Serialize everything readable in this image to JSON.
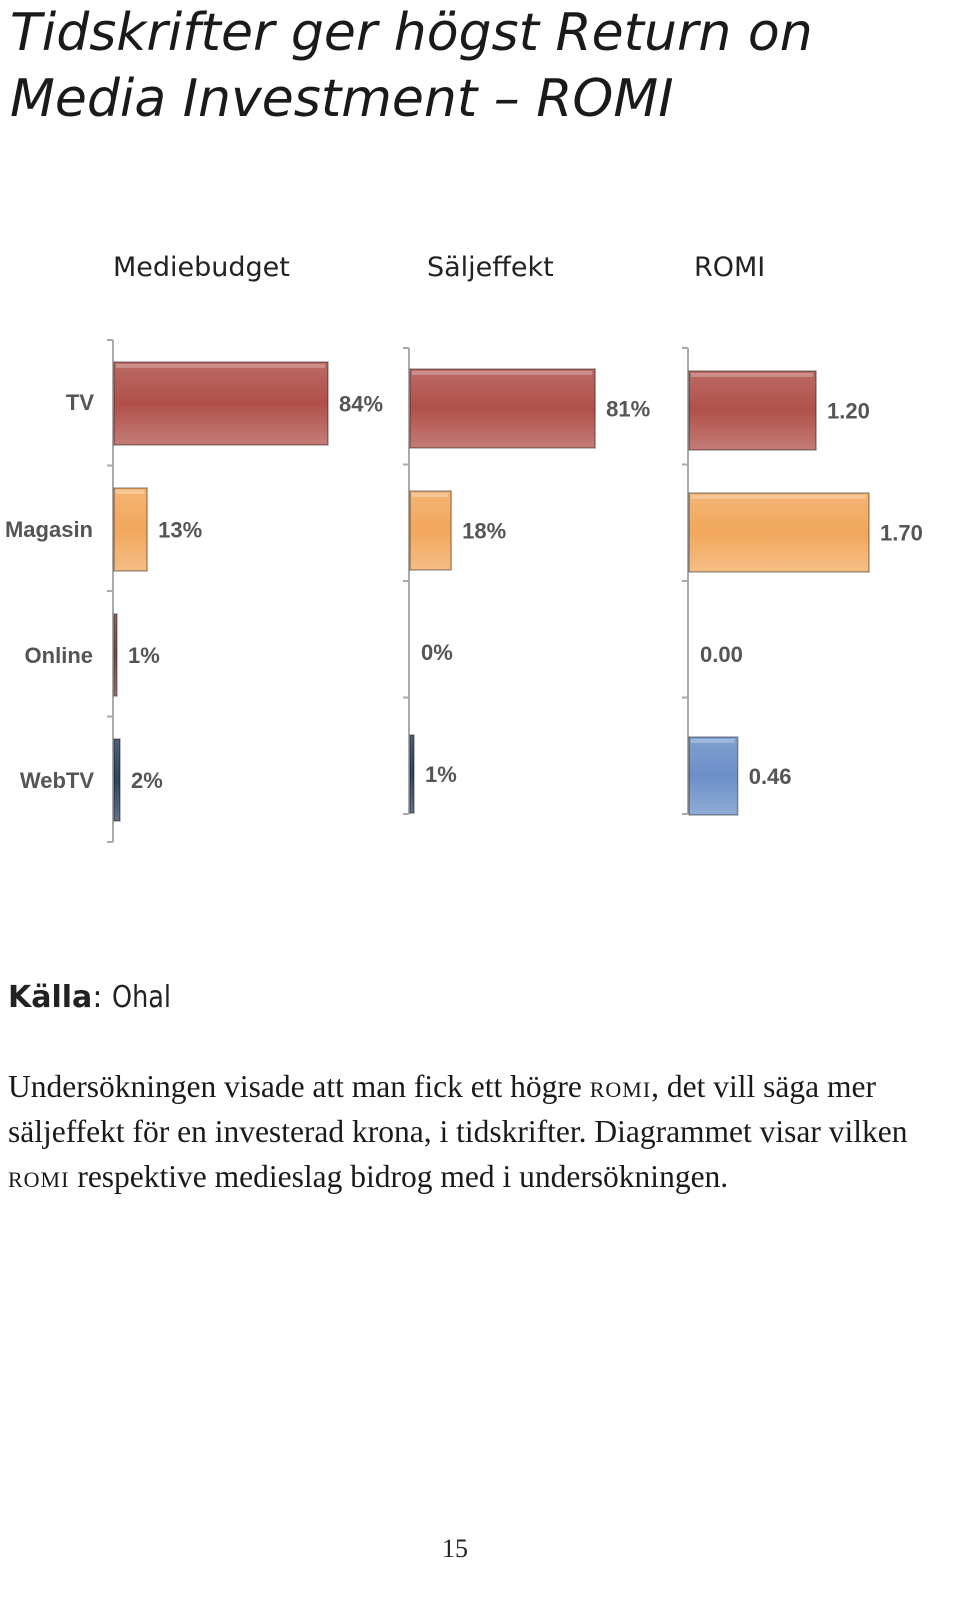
{
  "page": {
    "title_line1": "Tidskrifter ger högst Return on",
    "title_line2": "Media Investment – ROMI",
    "source_label": "Källa",
    "source_value": "Ohal",
    "body": {
      "part1": "Undersökningen visade att man fick ett högre ",
      "romi1": "ROMI",
      "part2": ", det vill säga mer säljeffekt för en investerad krona, i tidskrifter. Diagrammet visar vilken ",
      "romi2": "ROMI",
      "part3": " respektive medieslag bidrog med i undersökningen."
    },
    "page_number": "15"
  },
  "chart_data": [
    {
      "type": "bar",
      "orientation": "horizontal",
      "title": "Mediebudget",
      "categories": [
        "TV",
        "Magasin",
        "Online",
        "WebTV"
      ],
      "values": [
        84,
        13,
        1,
        2
      ],
      "labels": [
        "84%",
        "13%",
        "1%",
        "2%"
      ],
      "xlim": [
        0,
        84
      ]
    },
    {
      "type": "bar",
      "orientation": "horizontal",
      "title": "Säljeffekt",
      "categories": [
        "TV",
        "Magasin",
        "Online",
        "WebTV"
      ],
      "values": [
        81,
        18,
        0,
        1
      ],
      "labels": [
        "81%",
        "18%",
        "0%",
        "1%"
      ],
      "xlim": [
        0,
        84
      ]
    },
    {
      "type": "bar",
      "orientation": "horizontal",
      "title": "ROMI",
      "categories": [
        "TV",
        "Magasin",
        "Online",
        "WebTV"
      ],
      "values": [
        1.2,
        1.7,
        0.0,
        0.46
      ],
      "labels": [
        "1.20",
        "1.70",
        "0.00",
        "0.46"
      ],
      "xlim": [
        0,
        1.7
      ]
    }
  ],
  "colors": {
    "TV": "#b0504a",
    "Magasin": "#f2a75c",
    "Online": "#7a5040",
    "WebTV_budget": "#2e4560",
    "WebTV_romi": "#6b8fc8"
  }
}
